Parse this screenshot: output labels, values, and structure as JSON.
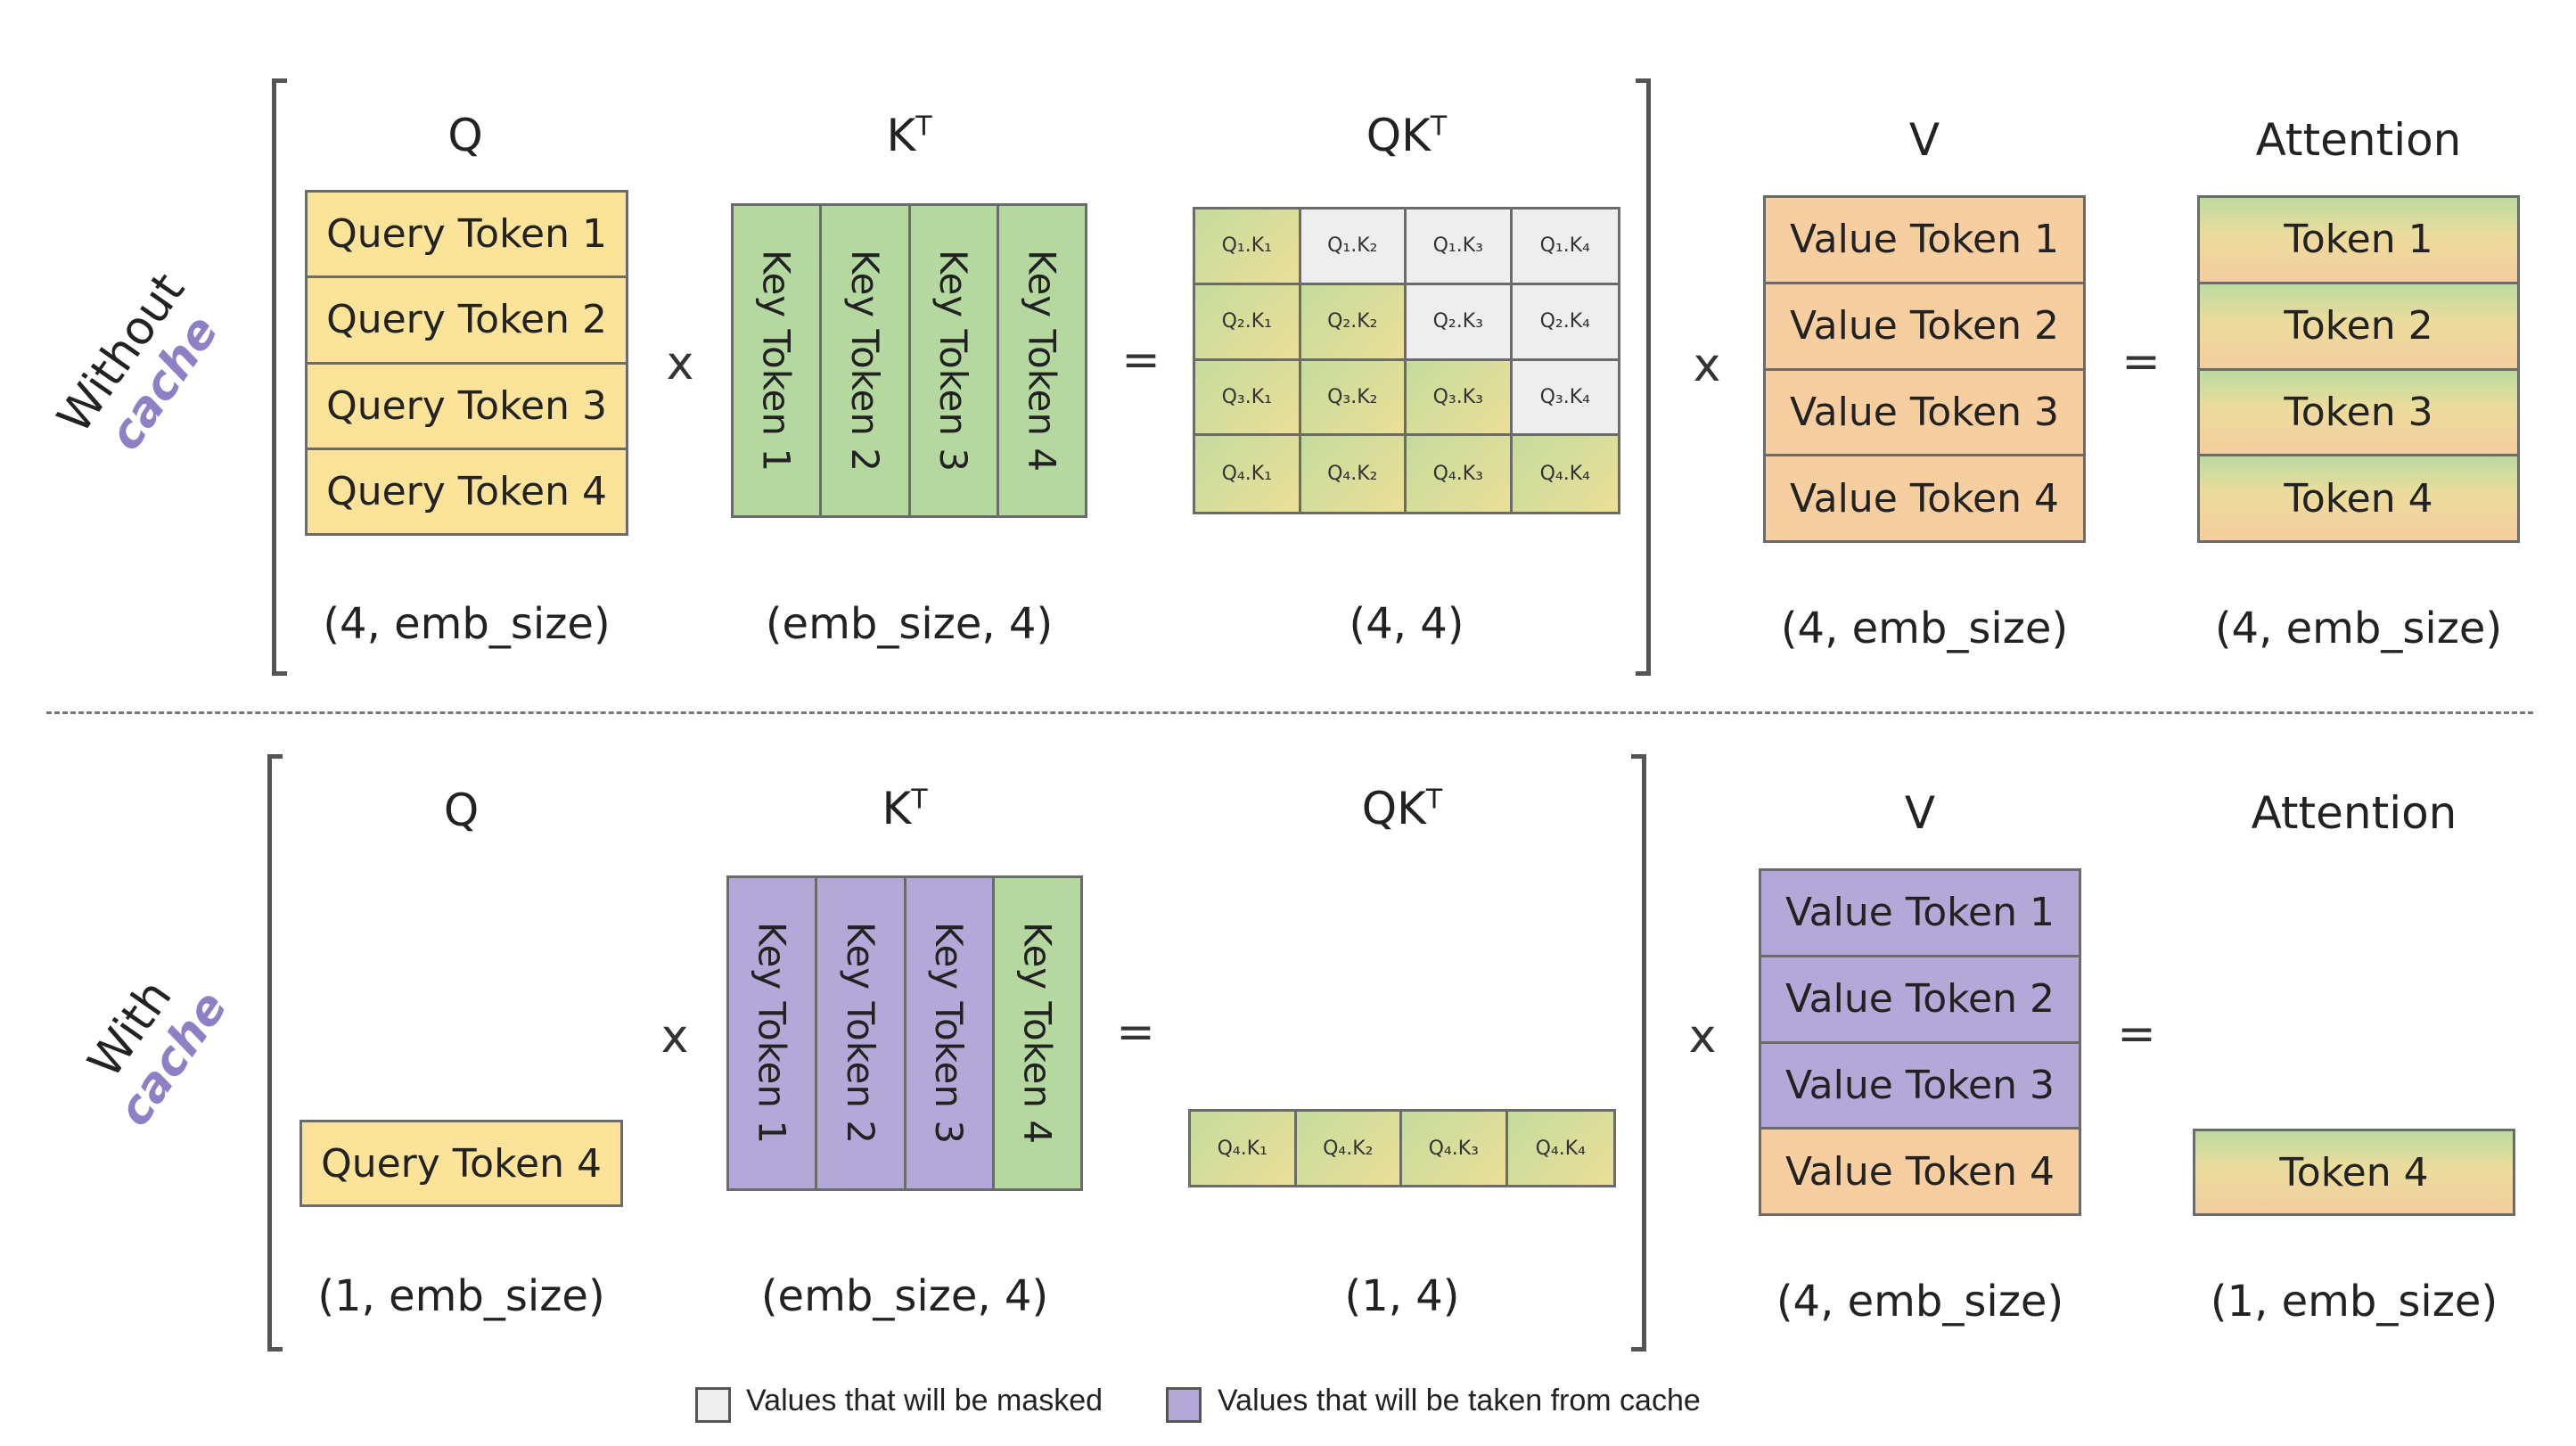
{
  "colors": {
    "query": "#fbe39a",
    "key": "#b5d8a1",
    "value": "#f6ce9f",
    "cached": "#b4a8d8",
    "masked": "#eeeeee",
    "accent": "#8f80c6"
  },
  "operators": {
    "times": "x",
    "equals": "="
  },
  "top": {
    "side_label": "Without",
    "side_emphasis": "cache",
    "q": {
      "label": "Q",
      "tokens": [
        "Query Token 1",
        "Query Token 2",
        "Query Token 3",
        "Query Token 4"
      ],
      "dim": "(4, emb_size)"
    },
    "kt": {
      "label": "K",
      "sup": "T",
      "tokens": [
        "Key Token 1",
        "Key Token 2",
        "Key Token 3",
        "Key Token 4"
      ],
      "dim": "(emb_size, 4)"
    },
    "qkt": {
      "label": "QK",
      "sup": "T",
      "dim": "(4, 4)",
      "cells": [
        [
          "Q₁.K₁",
          "Q₁.K₂",
          "Q₁.K₃",
          "Q₁.K₄"
        ],
        [
          "Q₂.K₁",
          "Q₂.K₂",
          "Q₂.K₃",
          "Q₂.K₄"
        ],
        [
          "Q₃.K₁",
          "Q₃.K₂",
          "Q₃.K₃",
          "Q₃.K₄"
        ],
        [
          "Q₄.K₁",
          "Q₄.K₂",
          "Q₄.K₃",
          "Q₄.K₄"
        ]
      ]
    },
    "v": {
      "label": "V",
      "tokens": [
        "Value Token 1",
        "Value Token 2",
        "Value Token 3",
        "Value Token 4"
      ],
      "dim": "(4, emb_size)"
    },
    "attn": {
      "label": "Attention",
      "tokens": [
        "Token 1",
        "Token 2",
        "Token 3",
        "Token 4"
      ],
      "dim": "(4, emb_size)"
    }
  },
  "bottom": {
    "side_label": "With",
    "side_emphasis": "cache",
    "q": {
      "label": "Q",
      "tokens": [
        "Query Token 4"
      ],
      "dim": "(1, emb_size)"
    },
    "kt": {
      "label": "K",
      "sup": "T",
      "tokens": [
        "Key Token 1",
        "Key Token 2",
        "Key Token 3",
        "Key Token 4"
      ],
      "dim": "(emb_size, 4)"
    },
    "qkt": {
      "label": "QK",
      "sup": "T",
      "dim": "(1, 4)",
      "cells": [
        [
          "Q₄.K₁",
          "Q₄.K₂",
          "Q₄.K₃",
          "Q₄.K₄"
        ]
      ]
    },
    "v": {
      "label": "V",
      "tokens": [
        "Value Token 1",
        "Value Token 2",
        "Value Token 3",
        "Value Token 4"
      ],
      "dim": "(4, emb_size)"
    },
    "attn": {
      "label": "Attention",
      "tokens": [
        "Token 4"
      ],
      "dim": "(1, emb_size)"
    }
  },
  "legend": {
    "masked": "Values that will be masked",
    "cached": "Values that will be taken from cache"
  }
}
